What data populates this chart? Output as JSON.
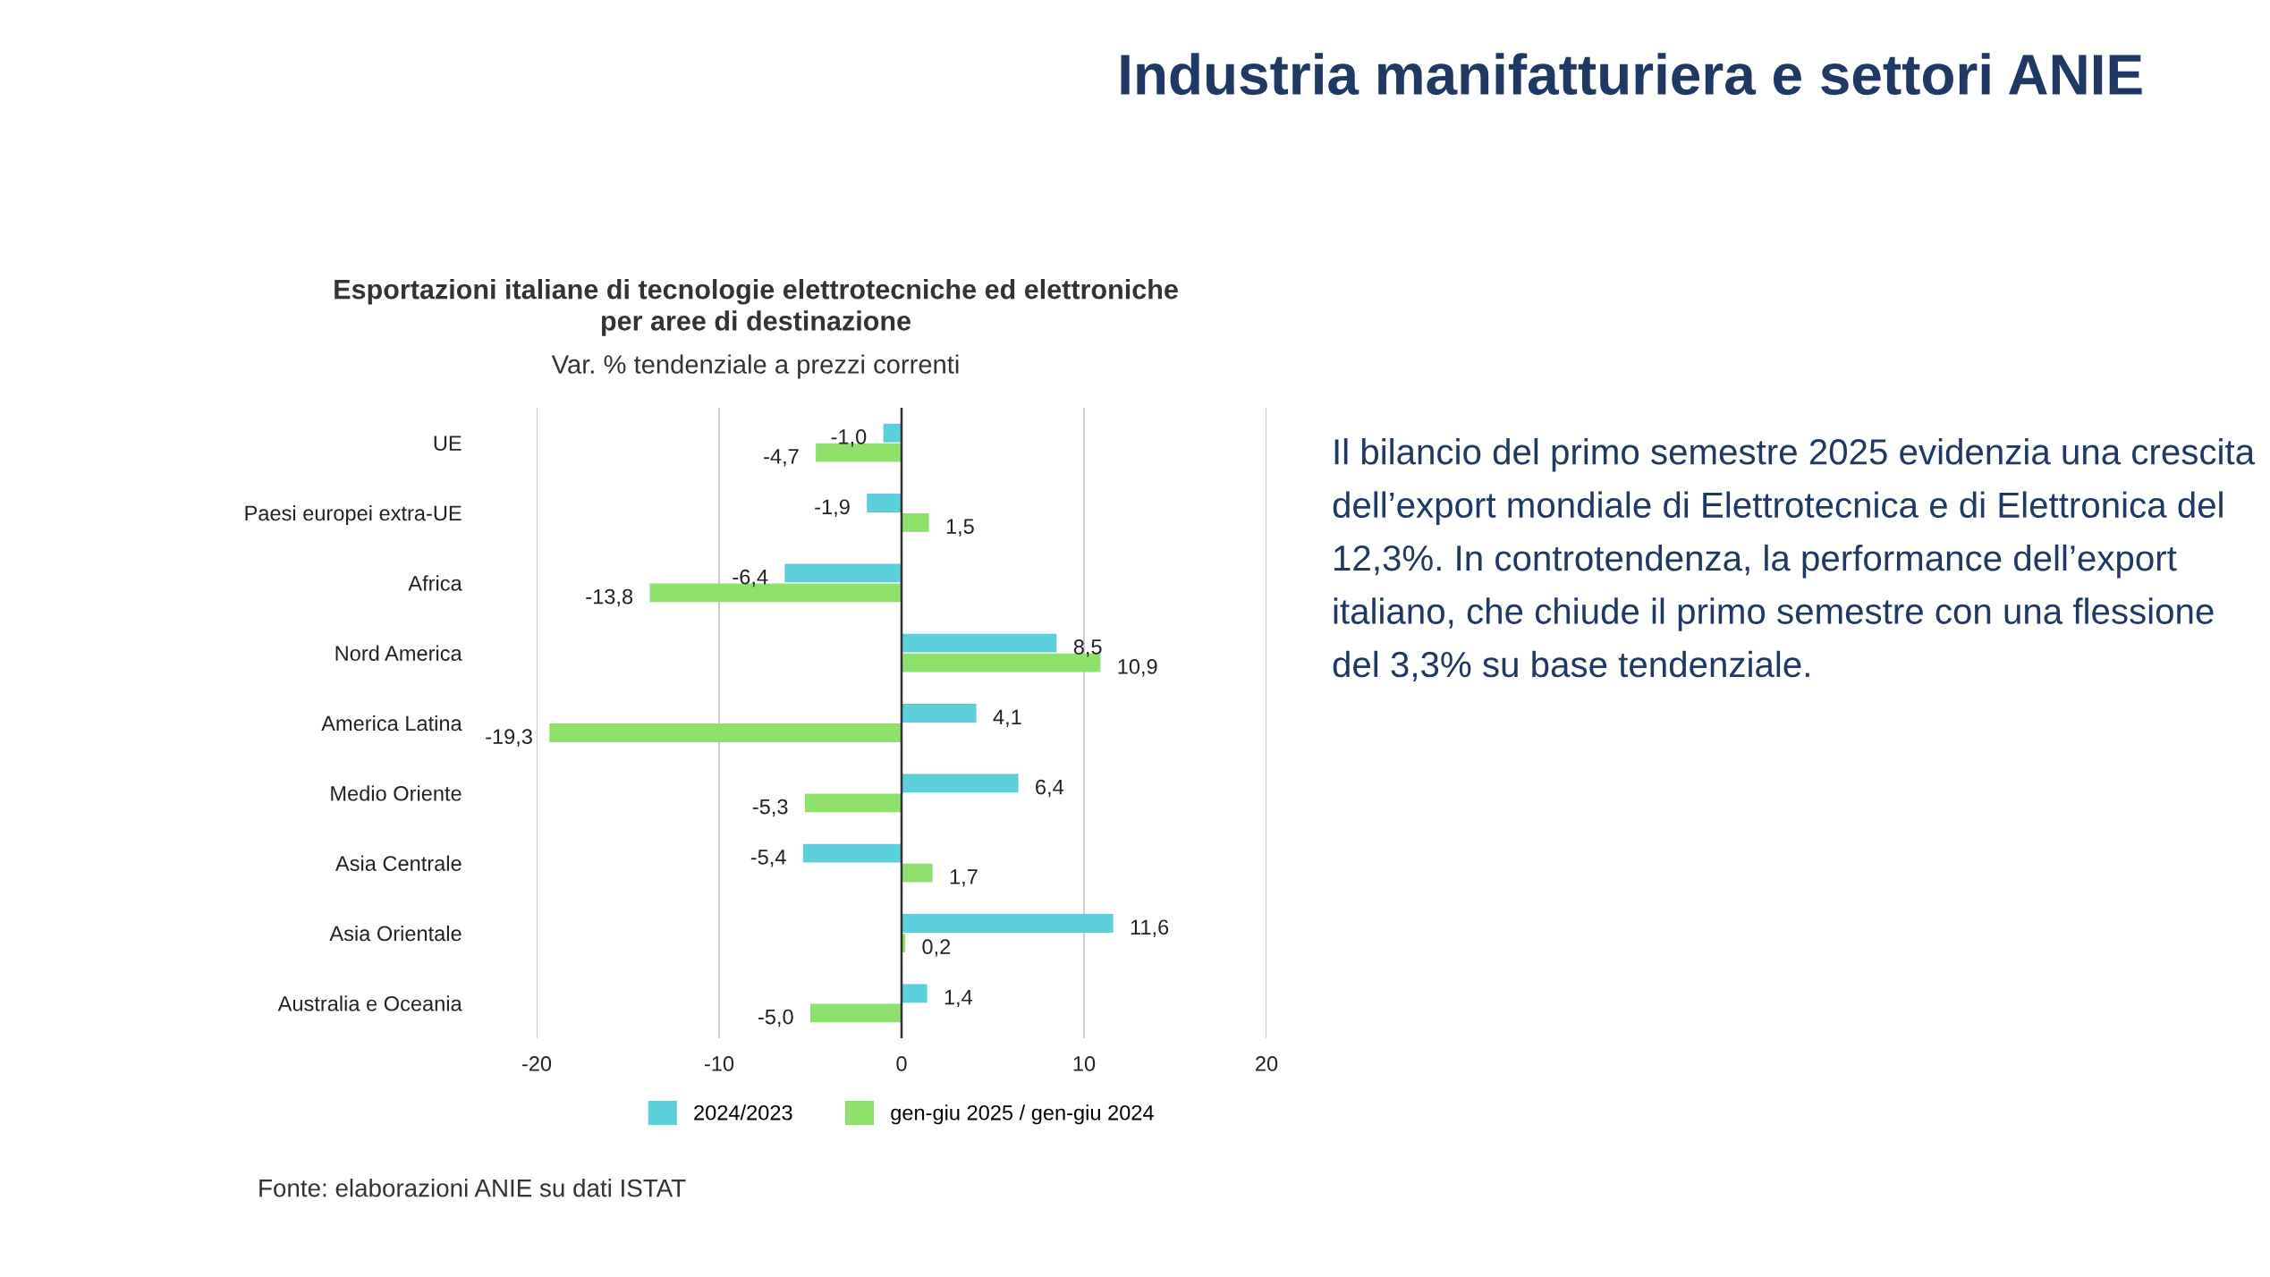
{
  "chart_data": {
    "type": "bar",
    "orientation": "horizontal",
    "title": "Esportazioni italiane di tecnologie elettrotecniche ed elettroniche\nper aree di destinazione",
    "subtitle": "Var. % tendenziale a prezzi correnti",
    "categories": [
      "UE",
      "Paesi europei extra-UE",
      "Africa",
      "Nord America",
      "America Latina",
      "Medio Oriente",
      "Asia Centrale",
      "Asia Orientale",
      "Australia e Oceania"
    ],
    "series": [
      {
        "name": "2024/2023",
        "color": "#5bcfdc",
        "values": [
          -1.0,
          -1.9,
          -6.4,
          8.5,
          4.1,
          6.4,
          -5.4,
          11.6,
          1.4
        ],
        "value_labels": [
          "-1,0",
          "-1,9",
          "-6,4",
          "8,5",
          "4,1",
          "6,4",
          "-5,4",
          "11,6",
          "1,4"
        ]
      },
      {
        "name": "gen-giu 2025 / gen-giu 2024",
        "color": "#8ee26b",
        "values": [
          -4.7,
          1.5,
          -13.8,
          10.9,
          -19.3,
          -5.3,
          1.7,
          0.2,
          -5.0
        ],
        "value_labels": [
          "-4,7",
          "1,5",
          "-13,8",
          "10,9",
          "-19,3",
          "-5,3",
          "1,7",
          "0,2",
          "-5,0"
        ]
      }
    ],
    "xlim": [
      -20,
      20
    ],
    "xticks": [
      -20,
      -10,
      0,
      10,
      20
    ],
    "grid": "x",
    "legend": "bottom",
    "annotations": [
      "Industria manifatturiera e settori ANIE",
      "Il bilancio del primo semestre 2025 evidenzia una crescita dell’export mondiale di Elettrotecnica e di Elettronica del 12,3%. In controtendenza, la performance dell’export italiano, che chiude il primo semestre con una flessione del 3,3% su base tendenziale.",
      "Fonte: elaborazioni ANIE su dati ISTAT"
    ]
  }
}
